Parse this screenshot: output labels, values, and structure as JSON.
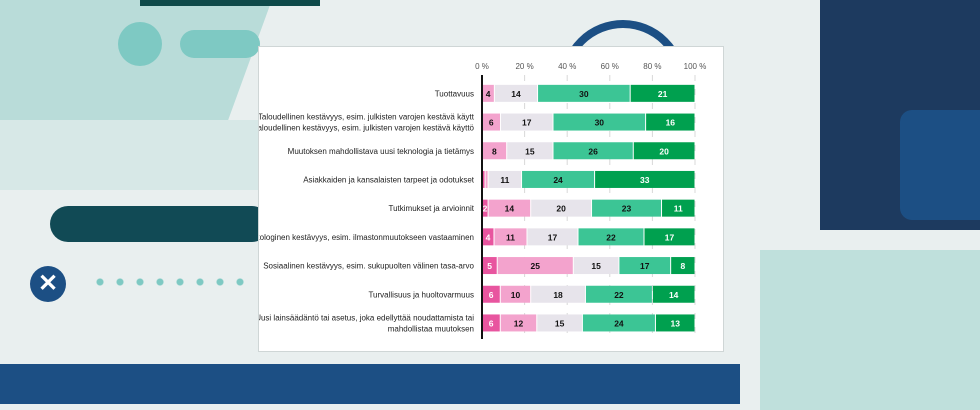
{
  "chart_data": {
    "type": "bar",
    "orientation": "horizontal",
    "stacked": "percent",
    "categories": [
      "Tuottavuus",
      "Taloudellinen kestävyys, esim. julkisten varojen kestävä käyttö",
      "Muutoksen mahdollistava uusi teknologia ja tietämys",
      "Asiakkaiden ja kansalaisten tarpeet ja odotukset",
      "Tutkimukset ja arvioinnit",
      "Ekologinen kestävyys, esim. ilmastonmuutokseen vastaaminen",
      "Sosiaalinen kestävyys, esim. sukupuolten välinen tasa-arvo",
      "Turvallisuus ja huoltovarmuus",
      "Uusi lainsäädäntö tai asetus, joka edellyttää noudattamista tai mahdollistaa muutoksen"
    ],
    "series": [
      {
        "color": "#e8559f",
        "values": [
          0,
          0,
          0,
          1,
          2,
          4,
          5,
          6,
          6
        ]
      },
      {
        "color": "#f3a3cd",
        "values": [
          4,
          6,
          8,
          1,
          14,
          11,
          25,
          10,
          12
        ]
      },
      {
        "color": "#e7e4eb",
        "values": [
          14,
          17,
          15,
          11,
          20,
          17,
          15,
          18,
          15
        ]
      },
      {
        "color": "#3cc595",
        "values": [
          30,
          30,
          26,
          24,
          23,
          22,
          17,
          22,
          24
        ]
      },
      {
        "color": "#00a04f",
        "values": [
          21,
          16,
          20,
          33,
          11,
          17,
          8,
          14,
          13
        ]
      }
    ],
    "xticks": [
      "0 %",
      "20 %",
      "40 %",
      "60 %",
      "80 %",
      "100 %"
    ],
    "xlim": [
      0,
      100
    ],
    "grid": "vertical dashed",
    "legend": "none"
  }
}
